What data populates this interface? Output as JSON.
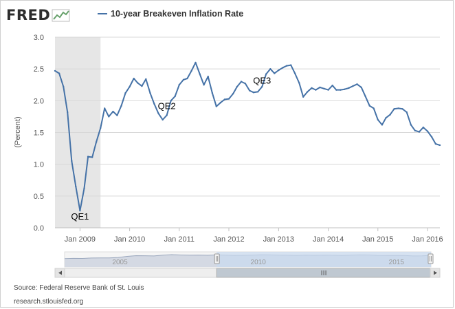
{
  "logo": {
    "text": "FRED"
  },
  "source_text": "Source: Federal Reserve Bank of St. Louis",
  "site_text": "research.stlouisfed.org",
  "colors": {
    "series": "#4572a7",
    "recession": "#e6e6e6",
    "grid": "#d8d8d8",
    "navigator_fill": "#c9daf0"
  },
  "chart_data": {
    "type": "line",
    "title": "",
    "ylabel": "(Percent)",
    "xlabel": "",
    "ylim": [
      0,
      3.0
    ],
    "xlim": [
      "2008-07-01",
      "2016-04-01"
    ],
    "yticks": [
      0.0,
      0.5,
      1.0,
      1.5,
      2.0,
      2.5,
      3.0
    ],
    "ytick_labels": [
      "0.0",
      "0.5",
      "1.0",
      "1.5",
      "2.0",
      "2.5",
      "3.0"
    ],
    "xticks": [
      "2009-01-01",
      "2010-01-01",
      "2011-01-01",
      "2012-01-01",
      "2013-01-01",
      "2014-01-01",
      "2015-01-01",
      "2016-01-01"
    ],
    "xtick_labels": [
      "Jan 2009",
      "Jan 2010",
      "Jan 2011",
      "Jan 2012",
      "Jan 2013",
      "Jan 2014",
      "Jan 2015",
      "Jan 2016"
    ],
    "grid": true,
    "legend": "top",
    "shaded_period": {
      "start": "2008-07-01",
      "end": "2009-06-01"
    },
    "series": [
      {
        "name": "10-year Breakeven Inflation Rate",
        "x": [
          "2008-07-01",
          "2008-08-01",
          "2008-09-01",
          "2008-10-01",
          "2008-11-01",
          "2008-12-01",
          "2009-01-01",
          "2009-02-01",
          "2009-03-01",
          "2009-04-01",
          "2009-05-01",
          "2009-06-01",
          "2009-07-01",
          "2009-08-01",
          "2009-09-01",
          "2009-10-01",
          "2009-11-01",
          "2009-12-01",
          "2010-01-01",
          "2010-02-01",
          "2010-03-01",
          "2010-04-01",
          "2010-05-01",
          "2010-06-01",
          "2010-07-01",
          "2010-08-01",
          "2010-09-01",
          "2010-10-01",
          "2010-11-01",
          "2010-12-01",
          "2011-01-01",
          "2011-02-01",
          "2011-03-01",
          "2011-04-01",
          "2011-05-01",
          "2011-06-01",
          "2011-07-01",
          "2011-08-01",
          "2011-09-01",
          "2011-10-01",
          "2011-11-01",
          "2011-12-01",
          "2012-01-01",
          "2012-02-01",
          "2012-03-01",
          "2012-04-01",
          "2012-05-01",
          "2012-06-01",
          "2012-07-01",
          "2012-08-01",
          "2012-09-01",
          "2012-10-01",
          "2012-11-01",
          "2012-12-01",
          "2013-01-01",
          "2013-02-01",
          "2013-03-01",
          "2013-04-01",
          "2013-05-01",
          "2013-06-01",
          "2013-07-01",
          "2013-08-01",
          "2013-09-01",
          "2013-10-01",
          "2013-11-01",
          "2013-12-01",
          "2014-01-01",
          "2014-02-01",
          "2014-03-01",
          "2014-04-01",
          "2014-05-01",
          "2014-06-01",
          "2014-07-01",
          "2014-08-01",
          "2014-09-01",
          "2014-10-01",
          "2014-11-01",
          "2014-12-01",
          "2015-01-01",
          "2015-02-01",
          "2015-03-01",
          "2015-04-01",
          "2015-05-01",
          "2015-06-01",
          "2015-07-01",
          "2015-08-01",
          "2015-09-01",
          "2015-10-01",
          "2015-11-01",
          "2015-12-01",
          "2016-01-01",
          "2016-02-01",
          "2016-03-01",
          "2016-04-01"
        ],
        "values": [
          2.47,
          2.43,
          2.22,
          1.82,
          1.05,
          0.65,
          0.27,
          0.62,
          1.12,
          1.11,
          1.35,
          1.57,
          1.88,
          1.75,
          1.83,
          1.77,
          1.92,
          2.12,
          2.22,
          2.35,
          2.28,
          2.23,
          2.34,
          2.12,
          1.95,
          1.8,
          1.7,
          1.77,
          2.0,
          2.07,
          2.25,
          2.33,
          2.35,
          2.47,
          2.6,
          2.42,
          2.25,
          2.38,
          2.12,
          1.91,
          1.97,
          2.02,
          2.03,
          2.11,
          2.22,
          2.3,
          2.27,
          2.16,
          2.13,
          2.14,
          2.22,
          2.42,
          2.5,
          2.43,
          2.48,
          2.52,
          2.55,
          2.56,
          2.43,
          2.28,
          2.06,
          2.14,
          2.2,
          2.17,
          2.21,
          2.19,
          2.17,
          2.24,
          2.17,
          2.17,
          2.18,
          2.2,
          2.23,
          2.26,
          2.21,
          2.07,
          1.92,
          1.88,
          1.7,
          1.62,
          1.73,
          1.78,
          1.87,
          1.88,
          1.87,
          1.82,
          1.62,
          1.53,
          1.51,
          1.58,
          1.52,
          1.43,
          1.32,
          1.3
        ]
      }
    ],
    "annotations": [
      {
        "text": "QE1",
        "x": "2009-01-01",
        "y": 0.13
      },
      {
        "text": "QE2",
        "x": "2010-10-01",
        "y": 1.87
      },
      {
        "text": "QE3",
        "x": "2012-09-01",
        "y": 2.27
      }
    ],
    "navigator": {
      "tick_labels": [
        "2005",
        "2010",
        "2015"
      ],
      "tick_dates": [
        "2005-01-01",
        "2010-01-01",
        "2015-01-01"
      ],
      "range": [
        "2003-01-01",
        "2016-04-01"
      ],
      "selected": [
        "2008-07-01",
        "2016-04-01"
      ],
      "values": [
        1.68,
        1.72,
        1.7,
        1.78,
        1.8,
        1.82,
        1.9,
        2.12,
        2.25,
        2.24,
        2.2,
        2.35,
        2.45,
        2.38,
        2.34,
        2.37,
        2.33,
        2.4,
        2.35,
        2.3,
        2.32,
        2.36,
        2.42,
        2.4,
        2.36,
        2.33,
        2.3,
        2.34,
        2.32,
        2.34,
        2.33,
        2.31,
        2.35,
        2.4,
        2.38,
        2.3,
        2.28,
        2.3,
        2.28,
        2.2,
        2.22,
        2.3
      ]
    }
  }
}
